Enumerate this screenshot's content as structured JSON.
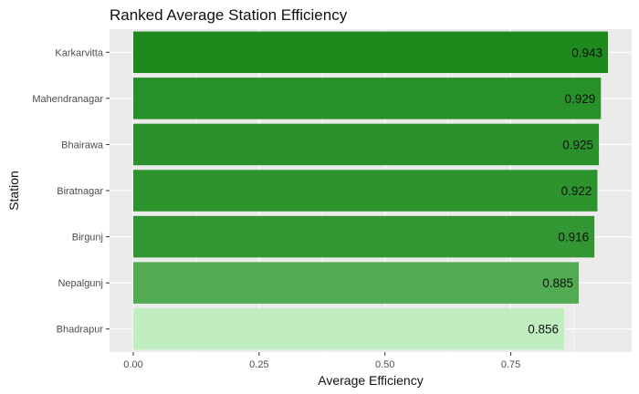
{
  "chart_data": {
    "type": "bar",
    "orientation": "horizontal",
    "title": "Ranked Average Station Efficiency",
    "xlabel": "Average Efficiency",
    "ylabel": "Station",
    "categories": [
      "Karkarvitta",
      "Mahendranagar",
      "Bhairawa",
      "Biratnagar",
      "Birgunj",
      "Nepalgunj",
      "Bhadrapur"
    ],
    "values": [
      0.943,
      0.929,
      0.925,
      0.922,
      0.916,
      0.885,
      0.856
    ],
    "labels": [
      "0.943",
      "0.929",
      "0.925",
      "0.922",
      "0.916",
      "0.885",
      "0.856"
    ],
    "x_ticks": [
      0.0,
      0.25,
      0.5,
      0.75
    ],
    "x_tick_labels": [
      "0.00",
      "0.25",
      "0.50",
      "0.75"
    ],
    "xlim": [
      0,
      0.943
    ],
    "grid": true,
    "legend": "none",
    "colors": {
      "panel_background": "#ebebeb",
      "grid": "#ffffff",
      "bar_high": "#1e8a1e",
      "bar_low": "#c0eec0"
    }
  }
}
